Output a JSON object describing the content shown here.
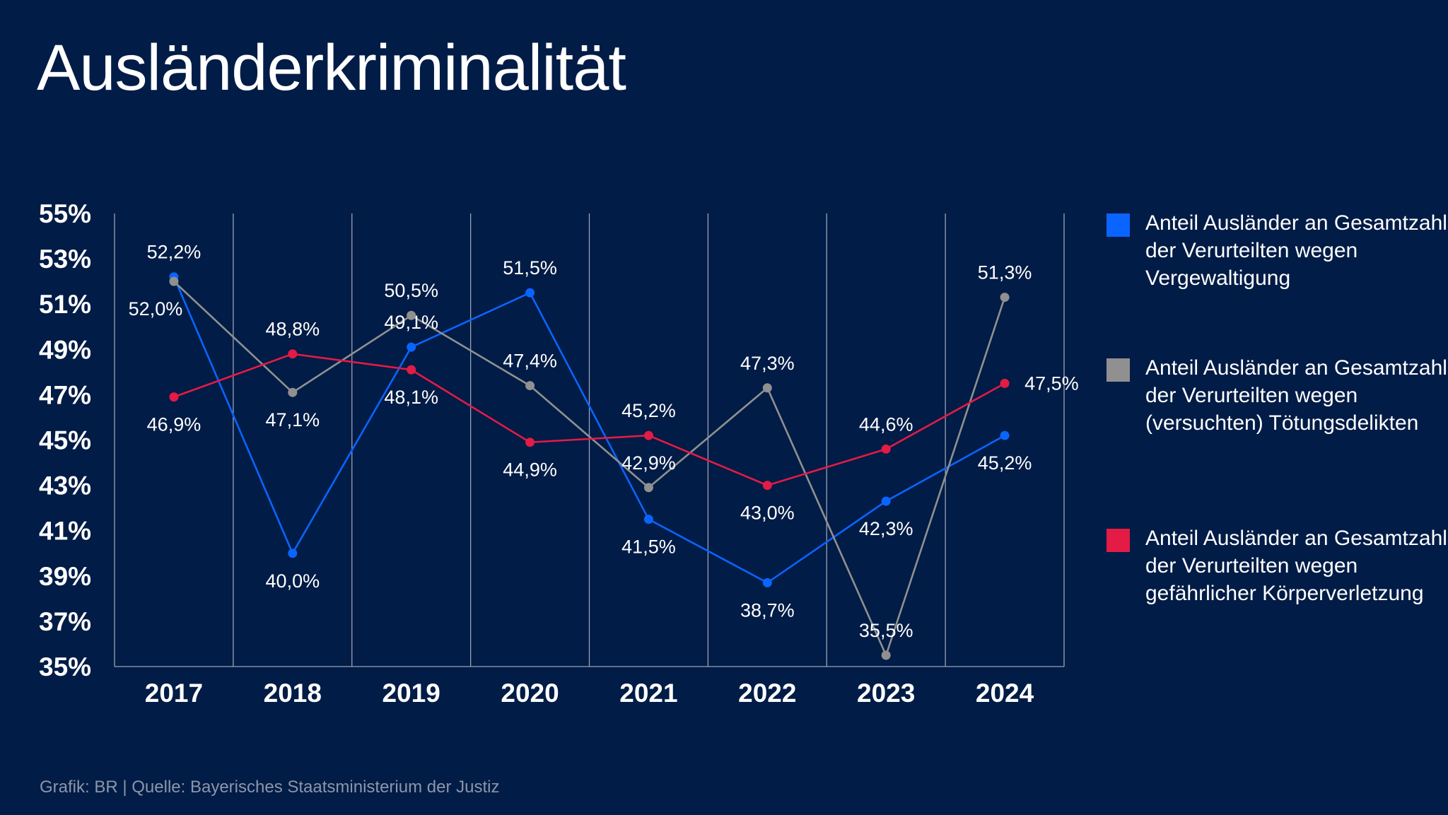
{
  "title": "Ausländerkriminalität",
  "source": "Grafik: BR | Quelle: Bayerisches Staatsministerium der Justiz",
  "chart_data": {
    "type": "line",
    "title": "Ausländerkriminalität",
    "categories": [
      "2017",
      "2018",
      "2019",
      "2020",
      "2021",
      "2022",
      "2023",
      "2024"
    ],
    "ylim": [
      35,
      55
    ],
    "yticks": [
      "55%",
      "53%",
      "51%",
      "49%",
      "47%",
      "45%",
      "43%",
      "41%",
      "39%",
      "37%",
      "35%"
    ],
    "ytick_values": [
      55,
      53,
      51,
      49,
      47,
      45,
      43,
      41,
      39,
      37,
      35
    ],
    "grid": "vertical",
    "legend_placement": "right",
    "series": [
      {
        "name": "Anteil Ausländer an Gesamtzahl der Verurteilten wegen Vergewaltigung",
        "color": "#0a64ff",
        "values": [
          52.2,
          40.0,
          49.1,
          51.5,
          41.5,
          38.7,
          42.3,
          45.2
        ],
        "labels": [
          "52,2%",
          "40,0%",
          "49,1%",
          "51,5%",
          "41,5%",
          "38,7%",
          "42,3%",
          "45,2%"
        ],
        "label_side": [
          "above",
          "below",
          "above",
          "above",
          "below",
          "below",
          "below",
          "below"
        ]
      },
      {
        "name": "Anteil Ausländer an Gesamtzahl der Verurteilten wegen (versuchten) Tötungsdelikten",
        "color": "#909090",
        "values": [
          52.0,
          47.1,
          50.5,
          47.4,
          42.9,
          47.3,
          35.5,
          51.3
        ],
        "labels": [
          "52,0%",
          "47,1%",
          "50,5%",
          "47,4%",
          "42,9%",
          "47,3%",
          "35,5%",
          "51,3%"
        ],
        "label_side": [
          "below",
          "below",
          "above",
          "above",
          "above",
          "above",
          "above",
          "above"
        ]
      },
      {
        "name": "Anteil Ausländer an Gesamtzahl der Verurteilten wegen gefährlicher Körperverletzung",
        "color": "#e31b45",
        "values": [
          46.9,
          48.8,
          48.1,
          44.9,
          45.2,
          43.0,
          44.6,
          47.5
        ],
        "labels": [
          "46,9%",
          "48,8%",
          "48,1%",
          "44,9%",
          "45,2%",
          "43,0%",
          "44,6%",
          "47,5%"
        ],
        "label_side": [
          "below",
          "above",
          "below",
          "below",
          "above",
          "below",
          "above",
          "right"
        ]
      }
    ]
  }
}
